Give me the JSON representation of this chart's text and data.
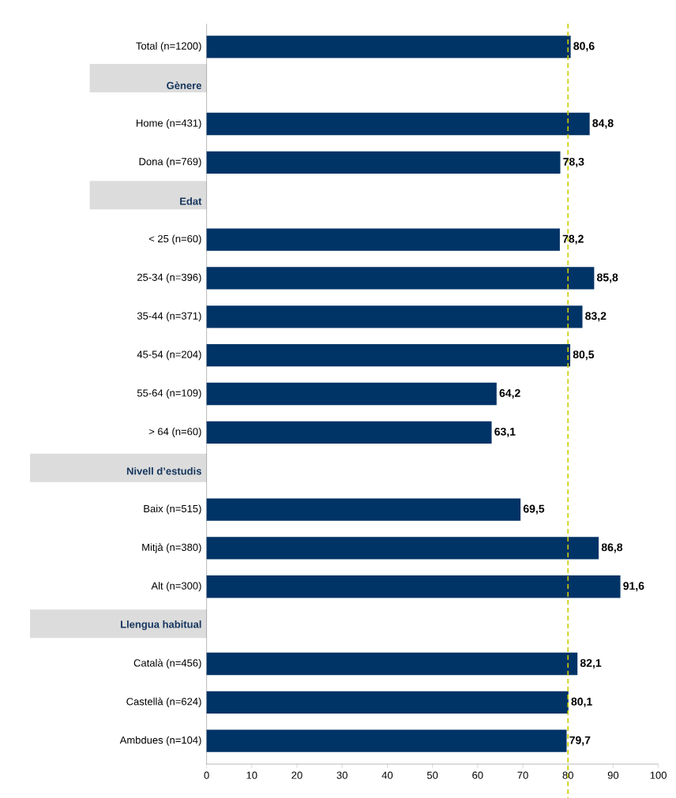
{
  "chart_data": {
    "type": "bar",
    "orientation": "horizontal",
    "categories": [
      "Total (n=1200)",
      "Gènere",
      "Home (n=431)",
      "Dona  (n=769)",
      "Edat",
      "< 25 (n=60)",
      "25-34 (n=396)",
      "35-44 (n=371)",
      "45-54 (n=204)",
      "55-64 (n=109)",
      "> 64 (n=60)",
      "Nivell d’estudis",
      "Baix (n=515)",
      "Mitjà (n=380)",
      "Alt (n=300)",
      "Llengua habitual",
      "Català (n=456)",
      "Castellà (n=624)",
      "Ambdues (n=104)"
    ],
    "values": [
      80.6,
      null,
      84.8,
      78.3,
      null,
      78.2,
      85.8,
      83.2,
      80.5,
      64.2,
      63.1,
      null,
      69.5,
      86.8,
      91.6,
      null,
      82.1,
      80.1,
      79.7
    ],
    "value_labels": [
      "80,6",
      null,
      "84,8",
      "78,3",
      null,
      "78,2",
      "85,8",
      "83,2",
      "80,5",
      "64,2",
      "63,1",
      null,
      "69,5",
      "86,8",
      "91,6",
      null,
      "82,1",
      "80,1",
      "79,7"
    ],
    "color": "#003366",
    "xlim": [
      0,
      100
    ],
    "xticks": [
      0,
      10,
      20,
      30,
      40,
      50,
      60,
      70,
      80,
      90,
      100
    ],
    "ref_lines": [
      {
        "axis": "x",
        "value": 80,
        "color": "#cccc00",
        "line_style": "dashed"
      }
    ],
    "grid": false
  }
}
